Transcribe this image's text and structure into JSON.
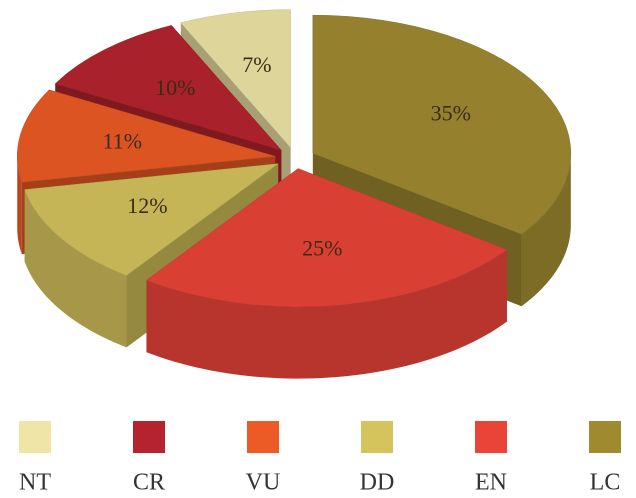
{
  "chart_data": {
    "type": "pie3d",
    "categories": [
      "NT",
      "CR",
      "VU",
      "DD",
      "EN",
      "LC"
    ],
    "values": [
      7,
      10,
      11,
      12,
      25,
      35
    ],
    "value_labels": [
      "7%",
      "10%",
      "11%",
      "12%",
      "25%",
      "35%"
    ],
    "colors": [
      "#efe5a6",
      "#b5232e",
      "#ec5a25",
      "#d5c35c",
      "#ea4438",
      "#a08a30"
    ],
    "legend": "bottom"
  }
}
